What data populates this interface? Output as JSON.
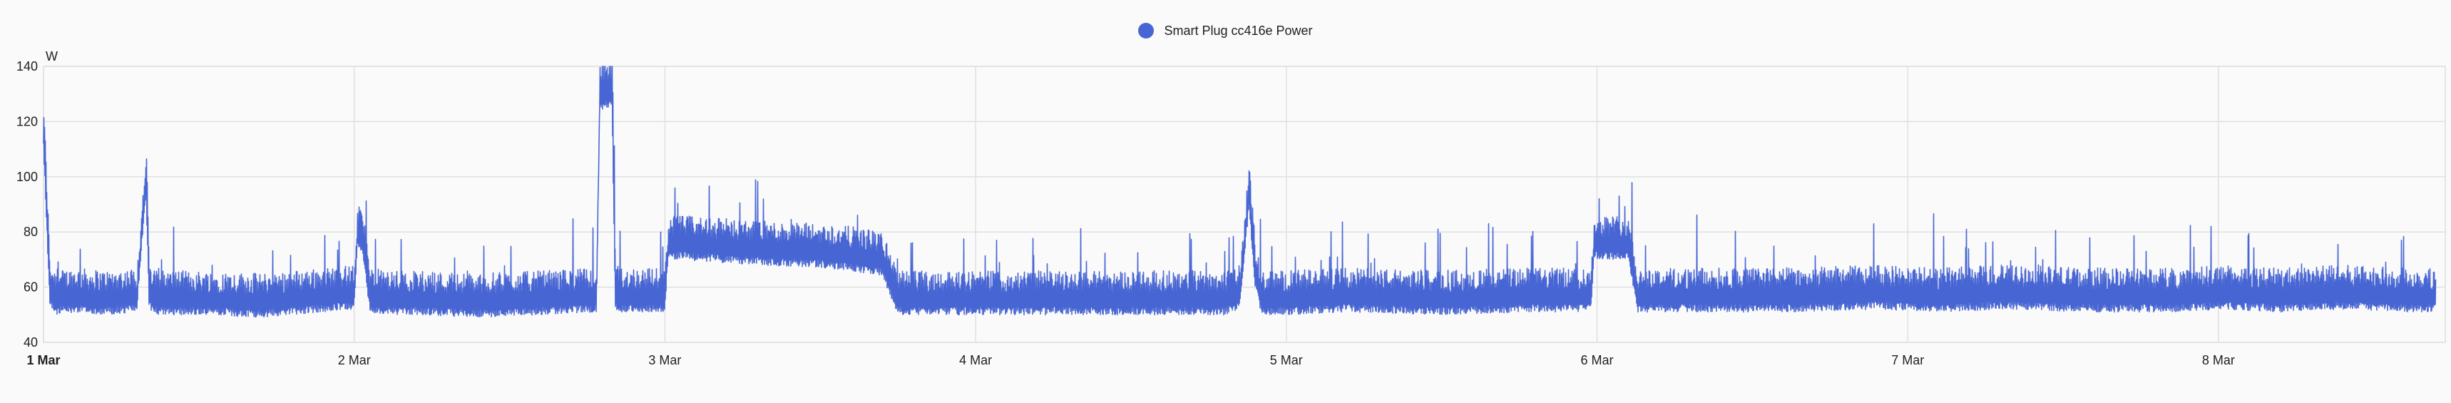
{
  "legend": {
    "label": "Smart Plug cc416e Power",
    "color": "#4866d3"
  },
  "chart_data": {
    "type": "line",
    "ylabel": "W",
    "ylim": [
      40,
      140
    ],
    "yticks": [
      "40",
      "60",
      "80",
      "100",
      "120",
      "140"
    ],
    "xticks": [
      "1 Mar",
      "2 Mar",
      "3 Mar",
      "4 Mar",
      "5 Mar",
      "6 Mar",
      "7 Mar",
      "8 Mar"
    ],
    "xlim_days": [
      0,
      7.7
    ],
    "grid": true,
    "legend_position": "top-center",
    "series": [
      {
        "name": "Smart Plug cc416e Power",
        "color": "#4866d3",
        "x_days": [
          0,
          0.02,
          0.04,
          0.1,
          0.2,
          0.3,
          0.33,
          0.34,
          0.36,
          0.5,
          0.7,
          0.9,
          1.0,
          1.01,
          1.03,
          1.05,
          1.08,
          1.2,
          1.4,
          1.6,
          1.78,
          1.79,
          1.8,
          1.83,
          1.84,
          1.86,
          2.0,
          2.01,
          2.05,
          2.3,
          2.5,
          2.6,
          2.7,
          2.75,
          3.0,
          3.2,
          3.5,
          3.8,
          3.85,
          3.88,
          3.9,
          3.92,
          4.0,
          4.2,
          4.5,
          4.8,
          4.98,
          4.99,
          5.05,
          5.1,
          5.13,
          5.16,
          5.3,
          5.6,
          5.9,
          6.1,
          6.3,
          6.6,
          6.9,
          7.0,
          7.2,
          7.4,
          7.6,
          7.7
        ],
        "values": [
          117,
          60,
          56,
          57,
          56,
          57,
          100,
          58,
          56,
          56,
          55,
          57,
          58,
          80,
          76,
          57,
          56,
          56,
          55,
          56,
          57,
          132,
          130,
          132,
          58,
          57,
          57,
          76,
          76,
          74,
          73,
          72,
          70,
          56,
          56,
          56,
          56,
          56,
          58,
          95,
          65,
          56,
          56,
          57,
          56,
          57,
          57,
          76,
          76,
          76,
          57,
          57,
          57,
          57,
          58,
          57,
          58,
          57,
          57,
          58,
          57,
          58,
          57,
          57
        ]
      }
    ]
  }
}
